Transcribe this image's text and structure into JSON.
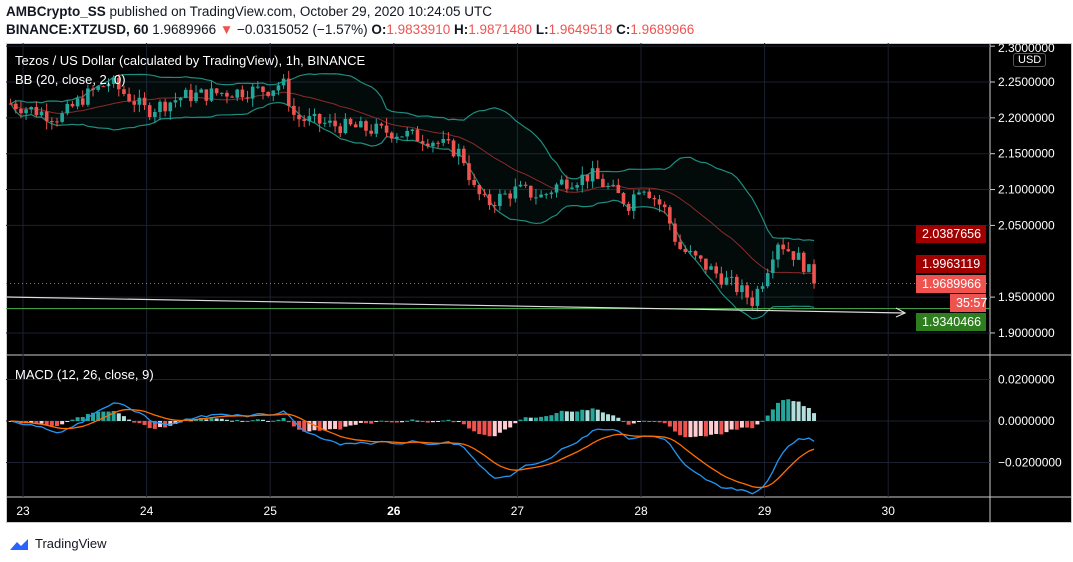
{
  "header": {
    "publisher": "AMBCrypto_SS",
    "published_text": "published on TradingView.com, October 29, 2020 10:24:05 UTC",
    "symbol": "BINANCE:XTZUSD, 60",
    "last": "1.9689966",
    "change": "−0.0315052 (−1.57%)",
    "o_label": "O:",
    "o": "1.9833910",
    "h_label": "H:",
    "h": "1.9871480",
    "l_label": "L:",
    "l": "1.9649518",
    "c_label": "C:",
    "c": "1.9689966"
  },
  "chart": {
    "title": "Tezos / US Dollar (calculated by TradingView), 1h, BINANCE",
    "bb_label": "BB (20, close, 2, 0)",
    "macd_label": "MACD (12, 26, close, 9)",
    "currency": "USD"
  },
  "colors": {
    "up": "#26a69a",
    "down": "#ef5350",
    "bb": "#1e8c7e",
    "basis": "#8b2a2a",
    "macd": "#2196f3",
    "signal": "#ff6d00"
  },
  "chart_data": {
    "type": "candlestick",
    "price_axis": [
      "2.3000000",
      "2.2500000",
      "2.2000000",
      "2.1500000",
      "2.1000000",
      "2.0500000",
      "1.9500000",
      "1.9000000"
    ],
    "macd_axis": [
      "0.0200000",
      "0.0000000",
      "−0.0200000"
    ],
    "time_axis": [
      "23",
      "24",
      "25",
      "26",
      "27",
      "28",
      "29",
      "30"
    ],
    "price_tags": {
      "bb_upper": "2.0387656",
      "bb_basis": "1.9963119",
      "last": "1.9689966",
      "countdown": "35:57",
      "level": "1.9340466"
    },
    "price_path": [
      [
        22.9,
        2.22
      ],
      [
        23.3,
        2.2
      ],
      [
        23.5,
        2.23
      ],
      [
        23.7,
        2.25
      ],
      [
        24.0,
        2.21
      ],
      [
        24.3,
        2.23
      ],
      [
        24.6,
        2.235
      ],
      [
        25.0,
        2.24
      ],
      [
        25.1,
        2.25
      ],
      [
        25.2,
        2.2
      ],
      [
        25.5,
        2.19
      ],
      [
        26.0,
        2.18
      ],
      [
        26.3,
        2.17
      ],
      [
        26.55,
        2.15
      ],
      [
        26.65,
        2.1
      ],
      [
        26.75,
        2.08
      ],
      [
        27.0,
        2.1
      ],
      [
        27.2,
        2.09
      ],
      [
        27.35,
        2.11
      ],
      [
        27.6,
        2.12
      ],
      [
        27.75,
        2.1
      ],
      [
        27.9,
        2.08
      ],
      [
        28.0,
        2.11
      ],
      [
        28.2,
        2.07
      ],
      [
        28.3,
        2.02
      ],
      [
        28.55,
        1.99
      ],
      [
        28.8,
        1.96
      ],
      [
        28.9,
        1.945
      ],
      [
        29.0,
        1.98
      ],
      [
        29.1,
        2.03
      ],
      [
        29.3,
        2.0
      ],
      [
        29.42,
        1.969
      ]
    ]
  },
  "footer": {
    "brand": "TradingView"
  }
}
